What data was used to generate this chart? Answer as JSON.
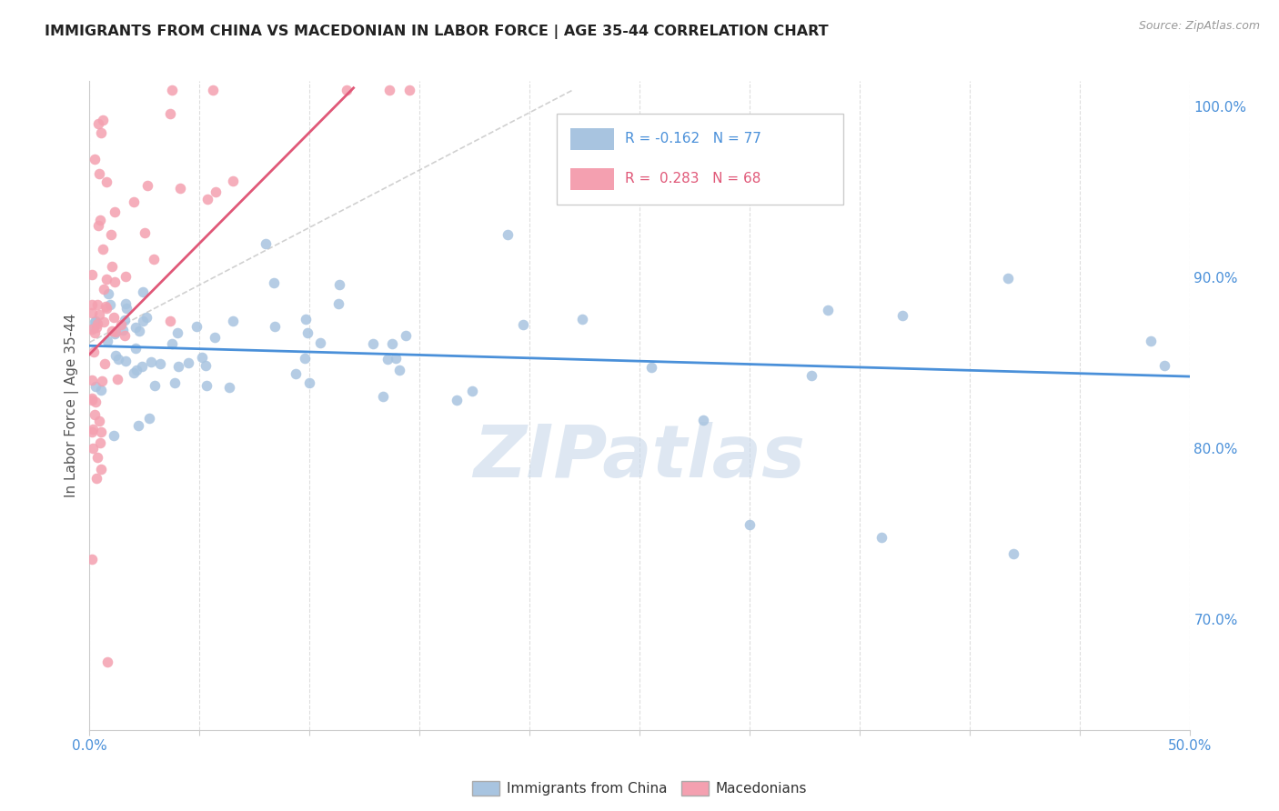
{
  "title": "IMMIGRANTS FROM CHINA VS MACEDONIAN IN LABOR FORCE | AGE 35-44 CORRELATION CHART",
  "source": "Source: ZipAtlas.com",
  "ylabel": "In Labor Force | Age 35-44",
  "xlim": [
    0.0,
    0.5
  ],
  "ylim": [
    0.635,
    1.015
  ],
  "xtick_vals": [
    0.0,
    0.05,
    0.1,
    0.15,
    0.2,
    0.25,
    0.3,
    0.35,
    0.4,
    0.45,
    0.5
  ],
  "xticklabels": [
    "0.0%",
    "",
    "",
    "",
    "",
    "",
    "",
    "",
    "",
    "",
    "50.0%"
  ],
  "ytick_vals": [
    0.7,
    0.8,
    0.9,
    1.0
  ],
  "ytick_labels": [
    "70.0%",
    "80.0%",
    "90.0%",
    "100.0%"
  ],
  "legend_r_china": "-0.162",
  "legend_n_china": "77",
  "legend_r_macedonian": "0.283",
  "legend_n_macedonian": "68",
  "color_china": "#a8c4e0",
  "color_macedonian": "#f4a0b0",
  "trendline_china_color": "#4a90d9",
  "trendline_macedonian_color": "#e05878",
  "watermark": "ZIPatlas",
  "watermark_color": "#c8d8ea",
  "grid_color": "#dddddd",
  "spine_color": "#cccccc",
  "tick_color": "#4a90d9",
  "ylabel_color": "#555555",
  "title_color": "#222222",
  "source_color": "#999999",
  "legend_text_china_color": "#4a90d9",
  "legend_text_mac_color": "#e05878"
}
